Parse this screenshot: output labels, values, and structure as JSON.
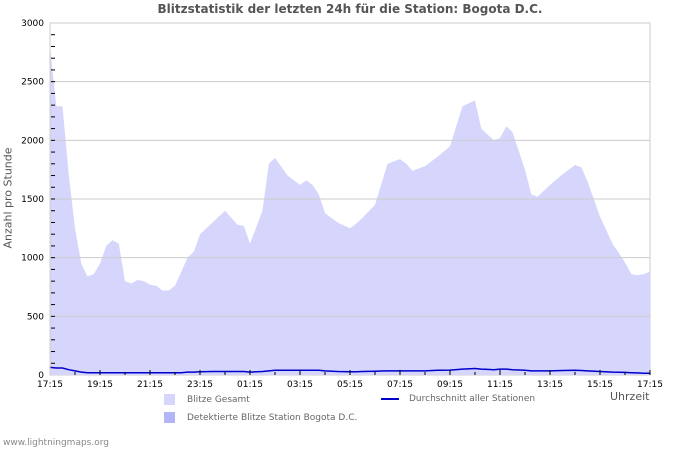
{
  "title": "Blitzstatistik der letzten 24h für die Station: Bogota D.C.",
  "footer": "www.lightningmaps.org",
  "colors": {
    "total_fill": "#d6d6fc",
    "station_fill": "#b4b4f8",
    "average_line": "#0000cc",
    "grid": "#cccccc"
  },
  "legend": {
    "total": "Blitze Gesamt",
    "station": "Detektierte Blitze Station Bogota D.C.",
    "average": "Durchschnitt aller Stationen"
  },
  "axes": {
    "ylabel": "Anzahl pro Stunde",
    "xlabel": "Uhrzeit"
  },
  "chart_data": {
    "type": "area",
    "title": "Blitzstatistik der letzten 24h für die Station: Bogota D.C.",
    "xlabel": "Uhrzeit",
    "ylabel": "Anzahl pro Stunde",
    "ylim": [
      0,
      3000
    ],
    "yticks": [
      0,
      500,
      1000,
      1500,
      2000,
      2500,
      3000
    ],
    "xticks": [
      "17:15",
      "19:15",
      "21:15",
      "23:15",
      "01:15",
      "03:15",
      "05:15",
      "07:15",
      "09:15",
      "11:15",
      "13:15",
      "15:15",
      "17:15"
    ],
    "grid": true,
    "legend_position": "bottom",
    "x_hours": [
      0,
      0.25,
      0.5,
      0.75,
      1.0,
      1.25,
      1.5,
      1.75,
      2.0,
      2.25,
      2.5,
      2.75,
      3.0,
      3.25,
      3.5,
      3.75,
      4.0,
      4.25,
      4.5,
      4.75,
      5.0,
      5.25,
      5.5,
      5.75,
      6.0,
      6.5,
      7.0,
      7.5,
      7.75,
      8.0,
      8.5,
      8.75,
      9.0,
      9.5,
      9.75,
      10.0,
      10.25,
      10.5,
      10.75,
      11.0,
      11.5,
      12.0,
      12.25,
      12.5,
      13.0,
      13.5,
      14.0,
      14.25,
      14.5,
      15.0,
      15.5,
      16.0,
      16.5,
      17.0,
      17.25,
      17.5,
      17.75,
      18.0,
      18.25,
      18.5,
      19.0,
      19.25,
      19.5,
      20.0,
      20.5,
      21.0,
      21.25,
      21.5,
      22.0,
      22.5,
      23.0,
      23.25,
      23.5,
      23.75,
      24.0
    ],
    "series": [
      {
        "name": "Blitze Gesamt",
        "values": [
          2800,
          2290,
          2290,
          1700,
          1250,
          950,
          840,
          860,
          950,
          1100,
          1150,
          1120,
          800,
          780,
          810,
          800,
          770,
          760,
          720,
          720,
          760,
          880,
          1000,
          1050,
          1200,
          1300,
          1400,
          1280,
          1270,
          1120,
          1400,
          1800,
          1850,
          1700,
          1660,
          1620,
          1660,
          1620,
          1540,
          1380,
          1300,
          1250,
          1290,
          1340,
          1450,
          1800,
          1840,
          1800,
          1740,
          1780,
          1860,
          1950,
          2290,
          2340,
          2100,
          2050,
          2000,
          2020,
          2120,
          2070,
          1750,
          1540,
          1520,
          1620,
          1710,
          1790,
          1770,
          1650,
          1350,
          1120,
          960,
          860,
          850,
          860,
          880
        ]
      },
      {
        "name": "Detektierte Blitze Station Bogota D.C.",
        "values": []
      },
      {
        "name": "Durchschnitt aller Stationen",
        "values": [
          65,
          60,
          60,
          45,
          35,
          25,
          20,
          20,
          20,
          20,
          20,
          20,
          20,
          20,
          20,
          20,
          20,
          20,
          20,
          20,
          20,
          20,
          25,
          25,
          28,
          30,
          30,
          30,
          30,
          25,
          30,
          35,
          40,
          40,
          40,
          40,
          40,
          40,
          40,
          35,
          30,
          28,
          28,
          30,
          32,
          35,
          35,
          35,
          35,
          35,
          40,
          42,
          50,
          55,
          50,
          48,
          45,
          50,
          50,
          45,
          40,
          35,
          35,
          35,
          38,
          40,
          38,
          35,
          30,
          25,
          22,
          20,
          18,
          15,
          15
        ]
      }
    ]
  }
}
